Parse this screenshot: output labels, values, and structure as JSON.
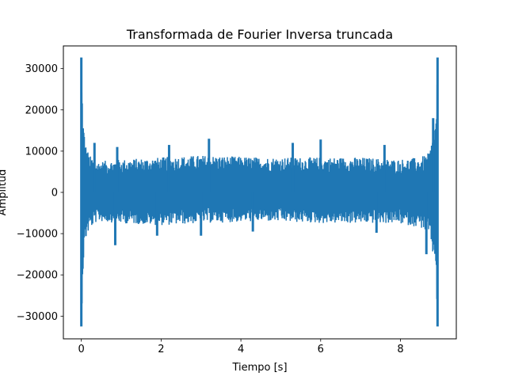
{
  "chart_data": {
    "type": "line",
    "title": "Transformada de Fourier Inversa truncada",
    "xlabel": "Tiempo [s]",
    "ylabel": "Amplitud",
    "xlim": [
      -0.45,
      9.4
    ],
    "ylim": [
      -35500,
      35500
    ],
    "x_ticks": [
      0,
      2,
      4,
      6,
      8
    ],
    "y_ticks": [
      -30000,
      -20000,
      -10000,
      0,
      10000,
      20000,
      30000
    ],
    "x_tick_labels": [
      "0",
      "2",
      "4",
      "6",
      "8"
    ],
    "y_tick_labels": [
      "−30000",
      "−20000",
      "−10000",
      "0",
      "10000",
      "20000",
      "30000"
    ],
    "grid": false,
    "series": [
      {
        "color": "#1f77b4",
        "x_range": [
          0,
          8.93
        ],
        "envelope": {
          "x": [
            0,
            0.05,
            0.1,
            0.2,
            0.4,
            1.0,
            2.0,
            3.0,
            4.5,
            6.0,
            7.0,
            7.9,
            8.5,
            8.7,
            8.83,
            8.88,
            8.93
          ],
          "upper": [
            32700,
            18000,
            12000,
            9000,
            7500,
            8000,
            8500,
            9000,
            8500,
            8500,
            8500,
            8000,
            8500,
            9500,
            14000,
            18000,
            32700
          ],
          "lower": [
            -32500,
            -18000,
            -12000,
            -9000,
            -7000,
            -7500,
            -8000,
            -7500,
            -7000,
            -7500,
            -7500,
            -7500,
            -8500,
            -10000,
            -16000,
            -18000,
            -32500
          ]
        },
        "peaks": [
          {
            "x": 0.0,
            "y": 32700
          },
          {
            "x": 0.0,
            "y": -32500
          },
          {
            "x": 8.93,
            "y": 32700
          },
          {
            "x": 8.93,
            "y": -32500
          },
          {
            "x": 0.33,
            "y": 12000
          },
          {
            "x": 0.9,
            "y": 11000
          },
          {
            "x": 2.2,
            "y": 11500
          },
          {
            "x": 3.2,
            "y": 13000
          },
          {
            "x": 5.3,
            "y": 12000
          },
          {
            "x": 6.0,
            "y": 12800
          },
          {
            "x": 7.6,
            "y": 11500
          },
          {
            "x": 8.82,
            "y": 18000
          },
          {
            "x": 0.85,
            "y": -12800
          },
          {
            "x": 1.9,
            "y": -10500
          },
          {
            "x": 3.0,
            "y": -10500
          },
          {
            "x": 4.3,
            "y": -9500
          },
          {
            "x": 7.4,
            "y": -9800
          },
          {
            "x": 8.65,
            "y": -15000
          }
        ]
      }
    ]
  }
}
